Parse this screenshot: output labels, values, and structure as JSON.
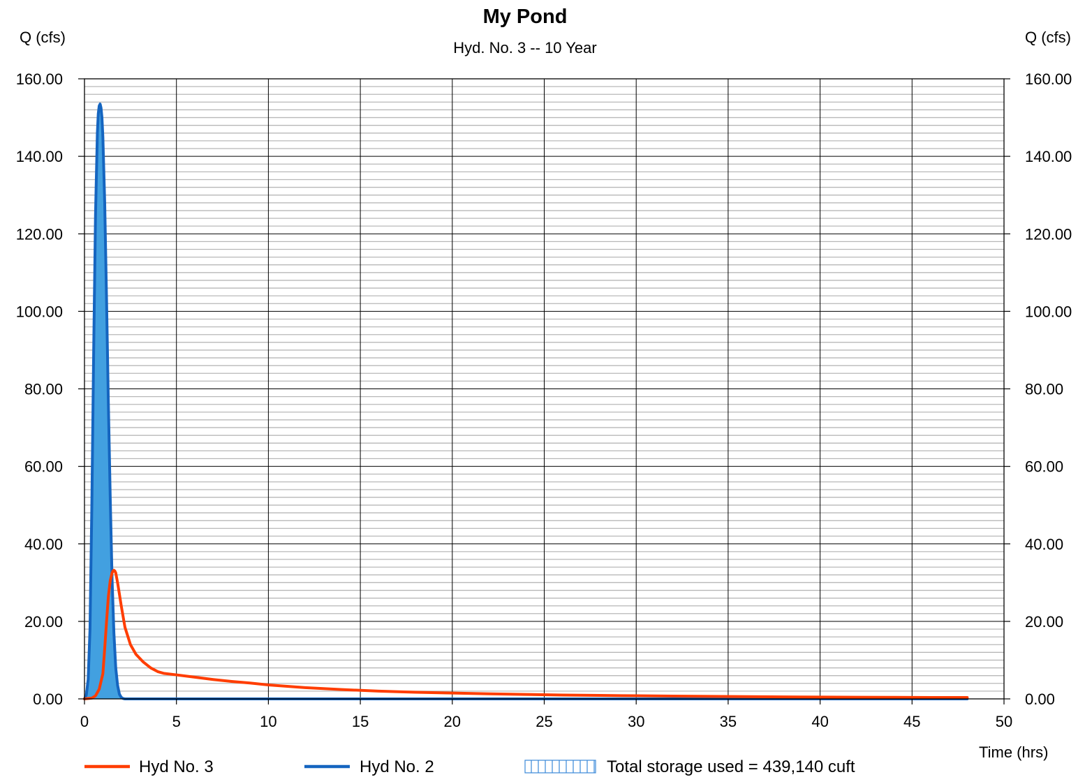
{
  "colors": {
    "background": "#ffffff",
    "major_grid": "#000000",
    "minor_grid": "#b8b8b8",
    "inflow": "#1565c0",
    "inflow_fill": "#42a0e0",
    "outflow": "#ff3d00",
    "storage_pattern": "#3a88d8"
  },
  "chart_data": {
    "type": "line",
    "title": "My Pond",
    "subtitle": "Hyd. No. 3 -- 10 Year",
    "ylabel_left": "Q (cfs)",
    "ylabel_right": "Q (cfs)",
    "xlabel": "Time (hrs)",
    "xlim": [
      0,
      50
    ],
    "ylim": [
      0,
      160
    ],
    "x_ticks": [
      "0",
      "5",
      "10",
      "15",
      "20",
      "25",
      "30",
      "35",
      "40",
      "45",
      "50"
    ],
    "y_ticks": [
      "0.00",
      "20.00",
      "40.00",
      "60.00",
      "80.00",
      "100.00",
      "120.00",
      "140.00",
      "160.00"
    ],
    "y_major_step": 20,
    "y_minor_step": 2,
    "x_major_step": 5,
    "grid": true,
    "legend_position": "bottom",
    "series": [
      {
        "name": "Hyd No. 3",
        "key": "outflow",
        "style": "line",
        "x": [
          0,
          0.4,
          0.6,
          0.8,
          1.0,
          1.1,
          1.2,
          1.3,
          1.4,
          1.5,
          1.55,
          1.6,
          1.65,
          1.7,
          1.8,
          1.9,
          2.0,
          2.2,
          2.5,
          2.8,
          3.2,
          3.6,
          4.0,
          4.3,
          5,
          6,
          7,
          8,
          9,
          10,
          12,
          14,
          16,
          18,
          20,
          22,
          24,
          26,
          28,
          30,
          32,
          34,
          36,
          38,
          40,
          42,
          44,
          46,
          48
        ],
        "y": [
          0,
          0.2,
          0.8,
          2.5,
          6.5,
          13,
          20,
          26.5,
          30.5,
          32.5,
          33,
          33.2,
          33,
          32.5,
          30,
          27,
          24,
          18.5,
          14,
          11.5,
          9.5,
          8,
          7,
          6.6,
          6.2,
          5.6,
          5.0,
          4.5,
          4.1,
          3.6,
          2.9,
          2.4,
          2.0,
          1.7,
          1.5,
          1.3,
          1.15,
          1.0,
          0.9,
          0.8,
          0.72,
          0.65,
          0.58,
          0.52,
          0.47,
          0.43,
          0.4,
          0.37,
          0.35
        ]
      },
      {
        "name": "Hyd No. 2",
        "key": "inflow",
        "style": "filled",
        "x": [
          0,
          0.1,
          0.2,
          0.3,
          0.4,
          0.5,
          0.6,
          0.7,
          0.75,
          0.8,
          0.85,
          0.9,
          0.95,
          1.0,
          1.1,
          1.2,
          1.3,
          1.4,
          1.5,
          1.6,
          1.7,
          1.8,
          1.9,
          2.0,
          2.1,
          2.2,
          2.4,
          3,
          5,
          10,
          20,
          30,
          40,
          48
        ],
        "y": [
          0,
          1,
          5,
          18,
          50,
          90,
          125,
          146,
          151,
          153,
          153.5,
          152.5,
          150,
          145,
          128,
          103,
          76,
          52,
          31,
          17,
          8,
          3.5,
          1.2,
          0.4,
          0.1,
          0,
          0,
          0,
          0,
          0,
          0,
          0,
          0,
          0
        ]
      }
    ],
    "legend": {
      "storage_label": "Total storage used = 439,140 cuft"
    }
  }
}
